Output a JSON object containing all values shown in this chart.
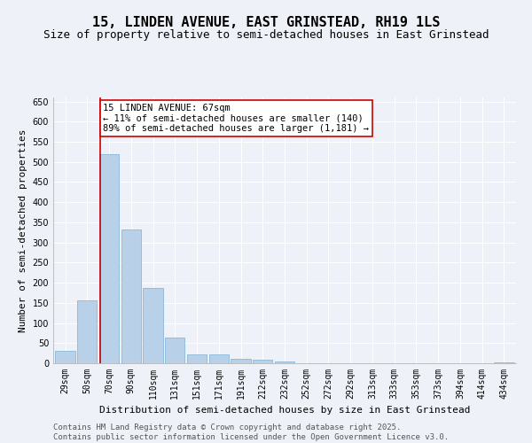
{
  "title": "15, LINDEN AVENUE, EAST GRINSTEAD, RH19 1LS",
  "subtitle": "Size of property relative to semi-detached houses in East Grinstead",
  "xlabel": "Distribution of semi-detached houses by size in East Grinstead",
  "ylabel": "Number of semi-detached properties",
  "categories": [
    "29sqm",
    "50sqm",
    "70sqm",
    "90sqm",
    "110sqm",
    "131sqm",
    "151sqm",
    "171sqm",
    "191sqm",
    "212sqm",
    "232sqm",
    "252sqm",
    "272sqm",
    "292sqm",
    "313sqm",
    "333sqm",
    "353sqm",
    "373sqm",
    "394sqm",
    "414sqm",
    "434sqm"
  ],
  "values": [
    30,
    157,
    520,
    333,
    188,
    63,
    22,
    22,
    12,
    9,
    5,
    1,
    0,
    0,
    0,
    0,
    0,
    0,
    0,
    0,
    2
  ],
  "bar_color": "#b8d0e8",
  "bar_edge_color": "#7ab0d4",
  "red_line_x": 1.575,
  "annotation_title": "15 LINDEN AVENUE: 67sqm",
  "annotation_line1": "← 11% of semi-detached houses are smaller (140)",
  "annotation_line2": "89% of semi-detached houses are larger (1,181) →",
  "annotation_box_color": "#ffffff",
  "annotation_box_edge": "#cc0000",
  "red_line_color": "#cc0000",
  "ylim": [
    0,
    660
  ],
  "yticks": [
    0,
    50,
    100,
    150,
    200,
    250,
    300,
    350,
    400,
    450,
    500,
    550,
    600,
    650
  ],
  "background_color": "#eef2f8",
  "grid_color": "#ffffff",
  "footer_line1": "Contains HM Land Registry data © Crown copyright and database right 2025.",
  "footer_line2": "Contains public sector information licensed under the Open Government Licence v3.0.",
  "title_fontsize": 11,
  "subtitle_fontsize": 9,
  "axis_label_fontsize": 8,
  "tick_fontsize": 7,
  "annotation_fontsize": 7.5,
  "footer_fontsize": 6.5
}
